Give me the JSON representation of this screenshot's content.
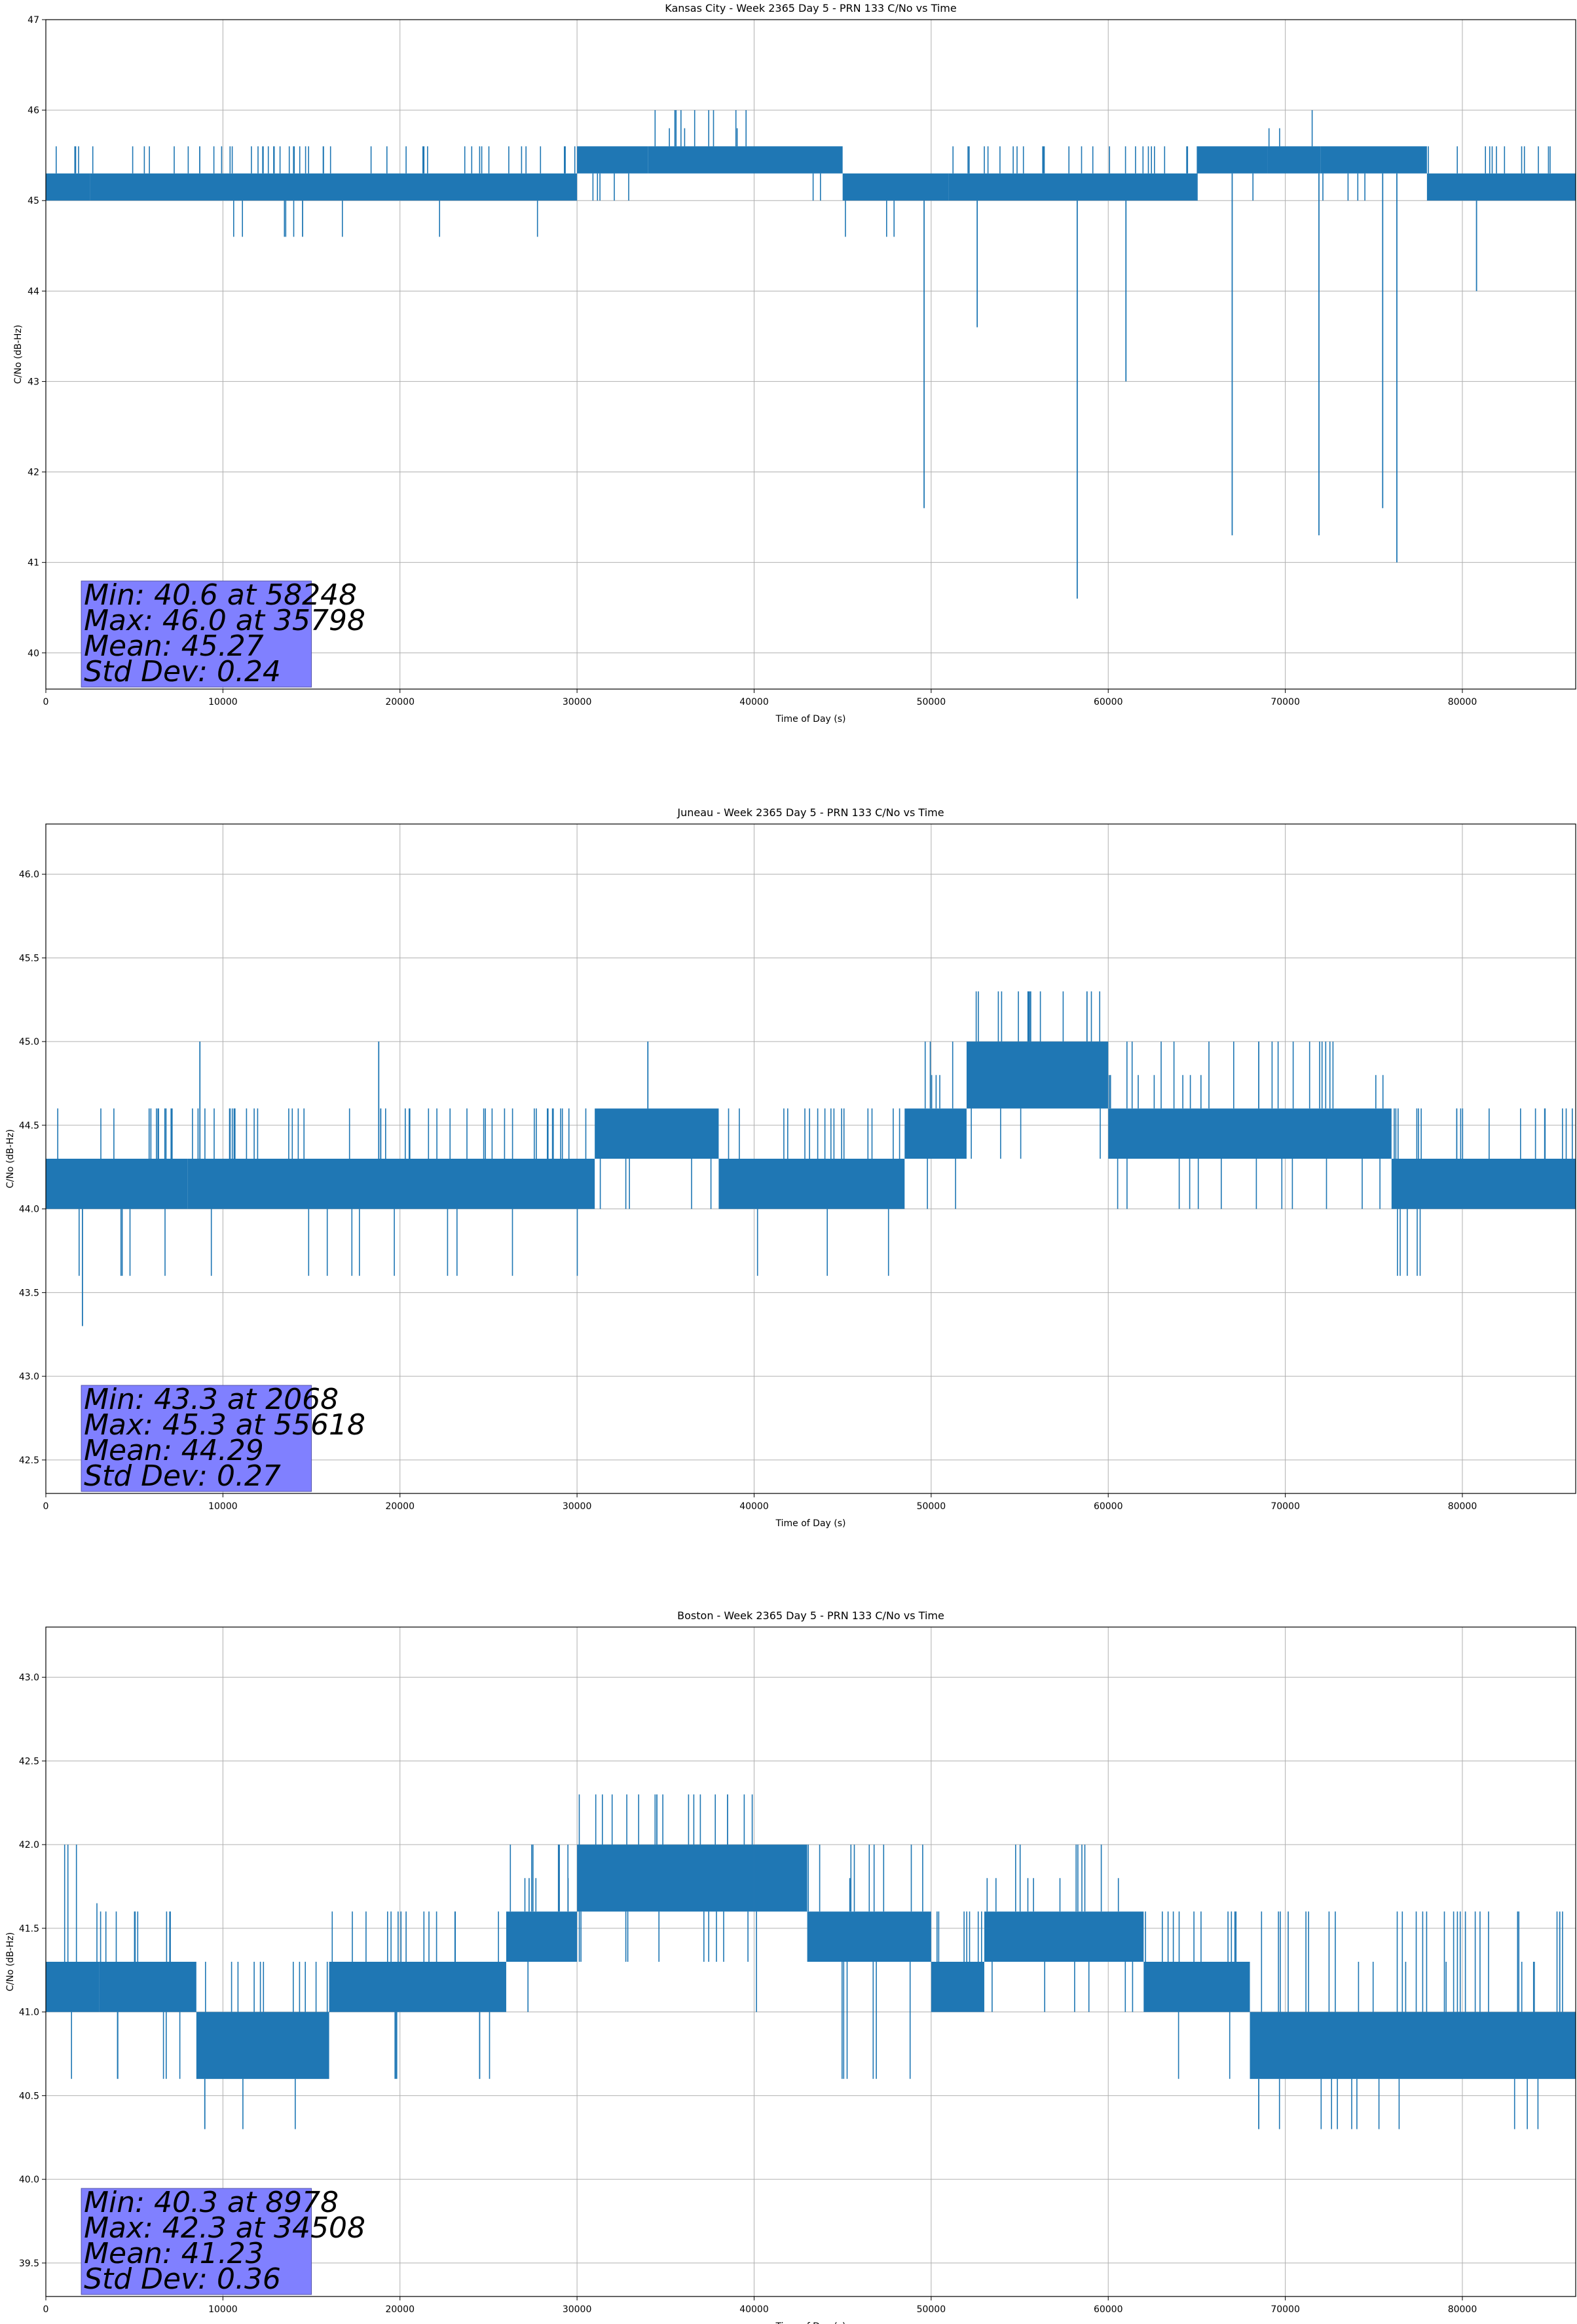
{
  "chart_data": [
    {
      "type": "line",
      "title": "Kansas City - Week 2365 Day 5 - PRN 133 C/No vs Time",
      "xlabel": "Time of Day (s)",
      "ylabel": "C/No (dB-Hz)",
      "xlim": [
        0,
        86400
      ],
      "ylim": [
        39.6,
        47
      ],
      "xticks": [
        0,
        10000,
        20000,
        30000,
        40000,
        50000,
        60000,
        70000,
        80000
      ],
      "xtick_labels": [
        "0",
        "10000",
        "20000",
        "30000",
        "40000",
        "50000",
        "60000",
        "70000",
        "80000"
      ],
      "yticks": [
        40,
        41,
        42,
        43,
        44,
        45,
        46,
        47
      ],
      "ytick_labels": [
        "40",
        "41",
        "42",
        "43",
        "44",
        "45",
        "46",
        "47"
      ],
      "grid": true,
      "line_color": "#1f77b4",
      "levels": [
        45.0,
        45.3,
        45.6,
        46.0
      ],
      "segments": [
        {
          "x": [
            0,
            2500
          ],
          "base": [
            45.0,
            45.3
          ],
          "up": 45.6,
          "down": 45.0
        },
        {
          "x": [
            2500,
            30000
          ],
          "base": [
            45.0,
            45.3
          ],
          "up": 45.6,
          "down": 44.6
        },
        {
          "x": [
            30000,
            34000
          ],
          "base": [
            45.3,
            45.6
          ],
          "up": 45.6,
          "down": 45.0
        },
        {
          "x": [
            34000,
            40500
          ],
          "base": [
            45.3,
            45.6
          ],
          "up": 46.0,
          "down": 45.3
        },
        {
          "x": [
            40500,
            45000
          ],
          "base": [
            45.3,
            45.6
          ],
          "up": 45.6,
          "down": 45.0
        },
        {
          "x": [
            45000,
            51000
          ],
          "base": [
            45.0,
            45.3
          ],
          "up": 45.3,
          "down": 44.6
        },
        {
          "x": [
            51000,
            65000
          ],
          "base": [
            45.0,
            45.3
          ],
          "up": 45.6,
          "down": 45.0
        },
        {
          "x": [
            65000,
            69000
          ],
          "base": [
            45.3,
            45.6
          ],
          "up": 45.6,
          "down": 45.0
        },
        {
          "x": [
            69000,
            72000
          ],
          "base": [
            45.3,
            45.6
          ],
          "up": 46.0,
          "down": 45.3
        },
        {
          "x": [
            72000,
            78000
          ],
          "base": [
            45.3,
            45.6
          ],
          "up": 45.6,
          "down": 45.0
        },
        {
          "x": [
            78000,
            86400
          ],
          "base": [
            45.0,
            45.3
          ],
          "up": 45.6,
          "down": 45.0
        }
      ],
      "spikes": [
        {
          "x": 14500,
          "y": 44.6
        },
        {
          "x": 49600,
          "y": 41.6
        },
        {
          "x": 52600,
          "y": 43.6
        },
        {
          "x": 58248,
          "y": 40.6
        },
        {
          "x": 61000,
          "y": 43.0
        },
        {
          "x": 67000,
          "y": 41.3
        },
        {
          "x": 71900,
          "y": 41.3
        },
        {
          "x": 75500,
          "y": 41.6
        },
        {
          "x": 76300,
          "y": 41.0
        },
        {
          "x": 80800,
          "y": 44.0
        }
      ],
      "stats": {
        "min": "Min: 40.6 at 58248",
        "max": "Max: 46.0 at 35798",
        "mean": "Mean: 45.27",
        "std": "Std Dev: 0.24"
      }
    },
    {
      "type": "line",
      "title": "Juneau - Week 2365 Day 5 - PRN 133 C/No vs Time",
      "xlabel": "Time of Day (s)",
      "ylabel": "C/No (dB-Hz)",
      "xlim": [
        0,
        86400
      ],
      "ylim": [
        42.3,
        46.3
      ],
      "xticks": [
        0,
        10000,
        20000,
        30000,
        40000,
        50000,
        60000,
        70000,
        80000
      ],
      "xtick_labels": [
        "0",
        "10000",
        "20000",
        "30000",
        "40000",
        "50000",
        "60000",
        "70000",
        "80000"
      ],
      "yticks": [
        42.5,
        43.0,
        43.5,
        44.0,
        44.5,
        45.0,
        45.5,
        46.0
      ],
      "ytick_labels": [
        "42.5",
        "43.0",
        "43.5",
        "44.0",
        "44.5",
        "45.0",
        "45.5",
        "46.0"
      ],
      "grid": true,
      "line_color": "#1f77b4",
      "levels": [
        43.6,
        44.0,
        44.3,
        44.6,
        45.0,
        45.3
      ],
      "segments": [
        {
          "x": [
            0,
            8000
          ],
          "base": [
            44.0,
            44.3
          ],
          "up": 44.6,
          "down": 43.6
        },
        {
          "x": [
            8000,
            31000
          ],
          "base": [
            44.0,
            44.3
          ],
          "up": 44.6,
          "down": 43.6
        },
        {
          "x": [
            31000,
            38000
          ],
          "base": [
            44.3,
            44.6
          ],
          "up": 44.6,
          "down": 44.0
        },
        {
          "x": [
            38000,
            48500
          ],
          "base": [
            44.0,
            44.3
          ],
          "up": 44.6,
          "down": 43.6
        },
        {
          "x": [
            48500,
            52000
          ],
          "base": [
            44.3,
            44.6
          ],
          "up": 45.0,
          "down": 44.0
        },
        {
          "x": [
            52000,
            60000
          ],
          "base": [
            44.6,
            45.0
          ],
          "up": 45.3,
          "down": 44.3
        },
        {
          "x": [
            60000,
            76000
          ],
          "base": [
            44.3,
            44.6
          ],
          "up": 45.0,
          "down": 44.0
        },
        {
          "x": [
            76000,
            86400
          ],
          "base": [
            44.0,
            44.3
          ],
          "up": 44.6,
          "down": 43.6
        }
      ],
      "spikes": [
        {
          "x": 2068,
          "y": 43.3
        },
        {
          "x": 8700,
          "y": 45.0
        },
        {
          "x": 18800,
          "y": 45.0
        },
        {
          "x": 34000,
          "y": 45.0
        },
        {
          "x": 55618,
          "y": 45.3
        },
        {
          "x": 58800,
          "y": 45.3
        },
        {
          "x": 68500,
          "y": 45.0
        }
      ],
      "stats": {
        "min": "Min: 43.3 at 2068",
        "max": "Max: 45.3 at 55618",
        "mean": "Mean: 44.29",
        "std": "Std Dev: 0.27"
      }
    },
    {
      "type": "line",
      "title": "Boston - Week 2365 Day 5 - PRN 133 C/No vs Time",
      "xlabel": "Time of Day (s)",
      "ylabel": "C/No (dB-Hz)",
      "xlim": [
        0,
        86400
      ],
      "ylim": [
        39.3,
        43.3
      ],
      "xticks": [
        0,
        10000,
        20000,
        30000,
        40000,
        50000,
        60000,
        70000,
        80000
      ],
      "xtick_labels": [
        "0",
        "10000",
        "20000",
        "30000",
        "40000",
        "50000",
        "60000",
        "70000",
        "80000"
      ],
      "yticks": [
        39.5,
        40.0,
        40.5,
        41.0,
        41.5,
        42.0,
        42.5,
        43.0
      ],
      "ytick_labels": [
        "39.5",
        "40.0",
        "40.5",
        "41.0",
        "41.5",
        "42.0",
        "42.5",
        "43.0"
      ],
      "grid": true,
      "line_color": "#1f77b4",
      "levels": [
        40.3,
        40.6,
        41.0,
        41.3,
        41.6,
        42.0,
        42.3
      ],
      "segments": [
        {
          "x": [
            0,
            3000
          ],
          "base": [
            41.0,
            41.3
          ],
          "up": 42.0,
          "down": 40.6
        },
        {
          "x": [
            3000,
            8500
          ],
          "base": [
            41.0,
            41.3
          ],
          "up": 41.6,
          "down": 40.6
        },
        {
          "x": [
            8500,
            16000
          ],
          "base": [
            40.6,
            41.0
          ],
          "up": 41.3,
          "down": 40.3
        },
        {
          "x": [
            16000,
            26000
          ],
          "base": [
            41.0,
            41.3
          ],
          "up": 41.6,
          "down": 40.6
        },
        {
          "x": [
            26000,
            30000
          ],
          "base": [
            41.3,
            41.6
          ],
          "up": 42.0,
          "down": 41.0
        },
        {
          "x": [
            30000,
            40000
          ],
          "base": [
            41.6,
            42.0
          ],
          "up": 42.3,
          "down": 41.3
        },
        {
          "x": [
            40000,
            43000
          ],
          "base": [
            41.6,
            42.0
          ],
          "up": 42.0,
          "down": 41.0
        },
        {
          "x": [
            43000,
            50000
          ],
          "base": [
            41.3,
            41.6
          ],
          "up": 42.0,
          "down": 40.6
        },
        {
          "x": [
            50000,
            53000
          ],
          "base": [
            41.0,
            41.3
          ],
          "up": 41.6,
          "down": 40.6
        },
        {
          "x": [
            53000,
            62000
          ],
          "base": [
            41.3,
            41.6
          ],
          "up": 42.0,
          "down": 41.0
        },
        {
          "x": [
            62000,
            68000
          ],
          "base": [
            41.0,
            41.3
          ],
          "up": 41.6,
          "down": 40.6
        },
        {
          "x": [
            68000,
            86400
          ],
          "base": [
            40.6,
            41.0
          ],
          "up": 41.6,
          "down": 40.3
        }
      ],
      "spikes": [
        {
          "x": 8978,
          "y": 40.3
        },
        {
          "x": 24500,
          "y": 40.6
        },
        {
          "x": 34508,
          "y": 42.3
        },
        {
          "x": 38500,
          "y": 42.3
        },
        {
          "x": 68500,
          "y": 40.3
        },
        {
          "x": 85500,
          "y": 41.6
        }
      ],
      "stats": {
        "min": "Min: 40.3 at 8978",
        "max": "Max: 42.3 at 34508",
        "mean": "Mean: 41.23",
        "std": "Std Dev: 0.36"
      }
    }
  ]
}
